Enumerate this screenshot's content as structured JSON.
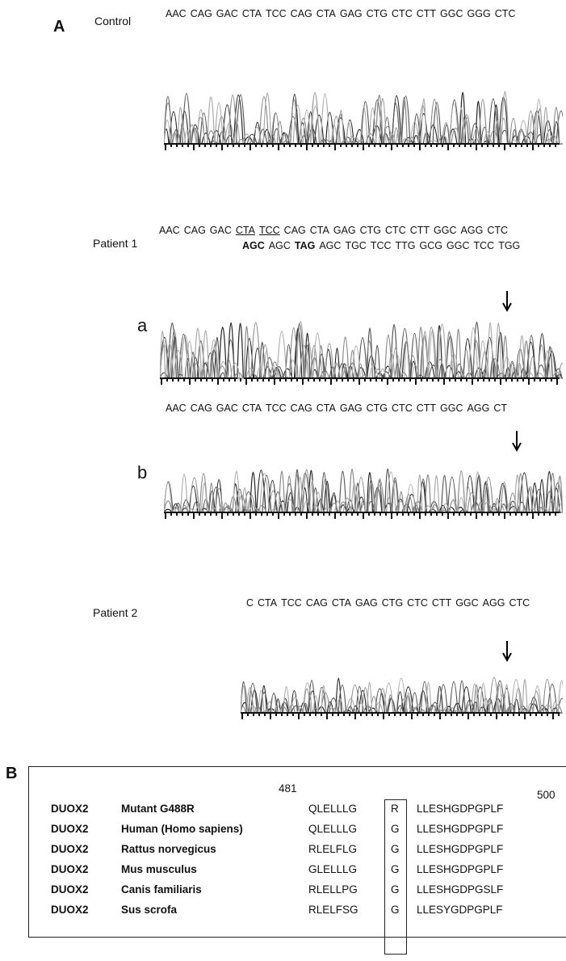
{
  "panel_a": {
    "label": "A",
    "control": {
      "label": "Control",
      "codons": [
        "AAC",
        "CAG",
        "GAC",
        "CTA",
        "TCC",
        "CAG",
        "CTA",
        "GAG",
        "CTG",
        "CTC",
        "CTT",
        "GGC",
        "GGG",
        "CTC"
      ]
    },
    "patient1": {
      "label": "Patient 1",
      "a": {
        "label": "a",
        "line1": [
          "AAC",
          "CAG",
          "GAC",
          {
            "text": "CTA",
            "underline": true
          },
          {
            "text": "TCC",
            "underline": true
          },
          "CAG",
          "CTA",
          "GAG",
          "CTG",
          "CTC",
          "CTT",
          "GGC",
          "AGG",
          "CTC"
        ],
        "line2": [
          {
            "text": "AGC",
            "bold": true
          },
          "AGC",
          {
            "text": "TAG",
            "bold": true
          },
          "AGC",
          "TGC",
          "TCC",
          "TTG",
          "GCG",
          "GGC",
          "TCC",
          "TGG"
        ]
      },
      "b": {
        "label": "b",
        "codons": [
          "AAC",
          "CAG",
          "GAC",
          "CTA",
          "TCC",
          "CAG",
          "CTA",
          "GAG",
          "CTG",
          "CTC",
          "CTT",
          "GGC",
          "AGG",
          "CT"
        ]
      }
    },
    "patient2": {
      "label": "Patient 2",
      "codons": [
        "C",
        "CTA",
        "TCC",
        "CAG",
        "CTA",
        "GAG",
        "CTG",
        "CTC",
        "CTT",
        "GGC",
        "AGG",
        "CTC"
      ]
    }
  },
  "panel_b": {
    "label": "B",
    "start_position": "481",
    "end_position": "500",
    "rows": [
      {
        "gene": "DUOX2",
        "species": "Mutant G488R",
        "left": "QLELLLG",
        "residue": "R",
        "right": "LLESHGDPGPLF"
      },
      {
        "gene": "DUOX2",
        "species": "Human (Homo sapiens)",
        "left": "QLELLLG",
        "residue": "G",
        "right": "LLESHGDPGPLF"
      },
      {
        "gene": "DUOX2",
        "species": "Rattus norvegicus",
        "left": "RLELFLG",
        "residue": "G",
        "right": "LLESHGDPGPLF"
      },
      {
        "gene": "DUOX2",
        "species": "Mus musculus",
        "left": "GLELLLG",
        "residue": "G",
        "right": "LLESHGDPGPLF"
      },
      {
        "gene": "DUOX2",
        "species": "Canis familiaris",
        "left": "RLELLPG",
        "residue": "G",
        "right": "LLESHGDPGSLF"
      },
      {
        "gene": "DUOX2",
        "species": "Sus scrofa",
        "left": "RLELFSG",
        "residue": "G",
        "right": "LLESYGDPGPLF"
      }
    ]
  }
}
